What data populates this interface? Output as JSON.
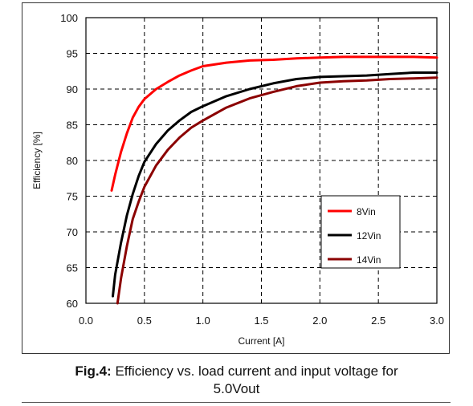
{
  "chart_data": {
    "type": "line",
    "xlabel": "Current [A]",
    "ylabel": "Efficiency [%]",
    "xlim": [
      0,
      3.0
    ],
    "ylim": [
      60,
      100
    ],
    "x_ticks": [
      "0.0",
      "0.5",
      "1.0",
      "1.5",
      "2.0",
      "2.5",
      "3.0"
    ],
    "y_ticks": [
      "60",
      "65",
      "70",
      "75",
      "80",
      "85",
      "90",
      "95",
      "100"
    ],
    "grid": "dashed",
    "legend_position": "lower-right",
    "series": [
      {
        "name": "8Vin",
        "color": "#ff0000",
        "x": [
          0.22,
          0.25,
          0.3,
          0.35,
          0.4,
          0.45,
          0.5,
          0.6,
          0.7,
          0.8,
          0.9,
          1.0,
          1.2,
          1.4,
          1.6,
          1.8,
          2.0,
          2.2,
          2.4,
          2.6,
          2.8,
          3.0
        ],
        "y": [
          75.8,
          78.0,
          81.2,
          83.8,
          86.0,
          87.5,
          88.6,
          90.0,
          91.0,
          91.9,
          92.6,
          93.2,
          93.7,
          94.0,
          94.1,
          94.3,
          94.4,
          94.5,
          94.5,
          94.5,
          94.5,
          94.4
        ]
      },
      {
        "name": "12Vin",
        "color": "#000000",
        "x": [
          0.23,
          0.25,
          0.3,
          0.35,
          0.4,
          0.45,
          0.5,
          0.6,
          0.7,
          0.8,
          0.9,
          1.0,
          1.2,
          1.4,
          1.6,
          1.8,
          2.0,
          2.2,
          2.4,
          2.6,
          2.8,
          3.0
        ],
        "y": [
          61.0,
          64.0,
          68.5,
          72.3,
          75.3,
          77.8,
          79.8,
          82.3,
          84.2,
          85.6,
          86.8,
          87.6,
          89.0,
          90.0,
          90.8,
          91.4,
          91.7,
          91.8,
          91.9,
          92.1,
          92.3,
          92.3
        ]
      },
      {
        "name": "14Vin",
        "color": "#8b0000",
        "x": [
          0.27,
          0.3,
          0.35,
          0.4,
          0.45,
          0.5,
          0.6,
          0.7,
          0.8,
          0.9,
          1.0,
          1.2,
          1.4,
          1.6,
          1.8,
          2.0,
          2.2,
          2.4,
          2.6,
          2.8,
          3.0
        ],
        "y": [
          60.0,
          63.5,
          68.0,
          71.8,
          74.2,
          76.3,
          79.3,
          81.5,
          83.2,
          84.6,
          85.6,
          87.4,
          88.7,
          89.6,
          90.4,
          90.9,
          91.1,
          91.2,
          91.4,
          91.5,
          91.6
        ]
      }
    ]
  },
  "caption": {
    "fig_label": "Fig.4:",
    "text": " Efficiency vs. load current and input voltage for",
    "line2": "5.0Vout"
  }
}
